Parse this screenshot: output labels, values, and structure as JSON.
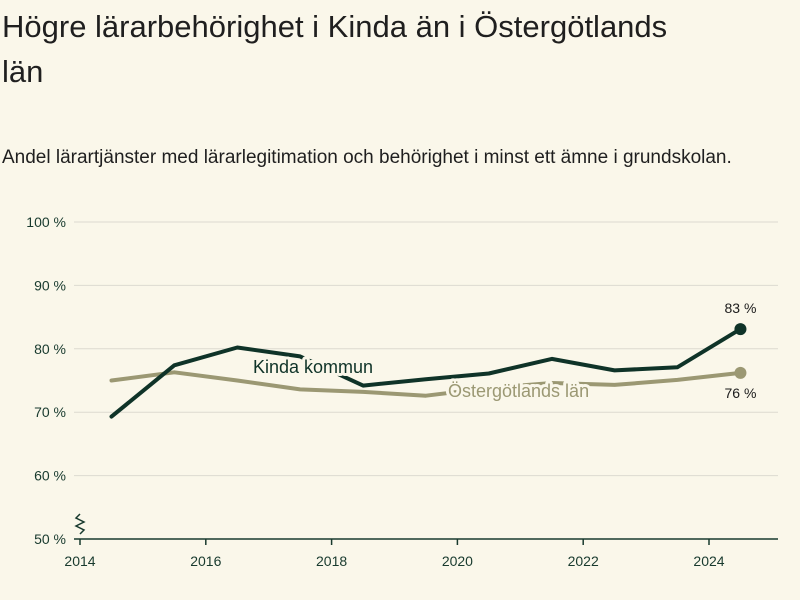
{
  "title": "Högre lärarbehörighet i Kinda än i Östergötlands län",
  "subtitle": "Andel lärartjänster med lärarlegitimation och behörighet i minst ett ämne i grundskolan.",
  "colors": {
    "background": "#faf7ea",
    "kinda": "#0f3328",
    "lan": "#9b9873",
    "grid": "#dcdad0",
    "axis": "#183a2e"
  },
  "chart_data": {
    "type": "line",
    "title": "Högre lärarbehörighet i Kinda än i Östergötlands län",
    "subtitle": "Andel lärartjänster med lärarlegitimation och behörighet i minst ett ämne i grundskolan.",
    "xlabel": "",
    "ylabel": "",
    "xlim": [
      2014,
      2025
    ],
    "ylim": [
      50,
      100
    ],
    "y_axis_break": true,
    "grid": true,
    "legend": "inline labels",
    "x_ticks": [
      "2014",
      "2016",
      "2018",
      "2020",
      "2022",
      "2024"
    ],
    "y_ticks": [
      "50 %",
      "60 %",
      "70 %",
      "80 %",
      "90 %",
      "100 %"
    ],
    "x": [
      2014.5,
      2015.5,
      2016.5,
      2017.5,
      2018.5,
      2019.5,
      2020.5,
      2021.5,
      2022.5,
      2023.5,
      2024.5
    ],
    "series": [
      {
        "name": "Kinda kommun",
        "values": [
          69.3,
          77.4,
          80.2,
          78.8,
          74.2,
          75.2,
          76.1,
          78.4,
          76.6,
          77.1,
          83.1
        ],
        "end_label": "83 %"
      },
      {
        "name": "Östergötlands län",
        "values": [
          75.0,
          76.3,
          75.0,
          73.6,
          73.2,
          72.6,
          73.8,
          74.6,
          74.3,
          75.1,
          76.2
        ],
        "end_label": "76 %"
      }
    ]
  }
}
